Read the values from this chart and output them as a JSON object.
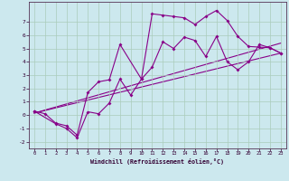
{
  "xlabel": "Windchill (Refroidissement éolien,°C)",
  "bg_color": "#cce8ee",
  "grid_color": "#aaccbb",
  "line_color": "#880088",
  "xlim": [
    -0.5,
    23.5
  ],
  "ylim": [
    -2.5,
    8.5
  ],
  "xticks": [
    0,
    1,
    2,
    3,
    4,
    5,
    6,
    7,
    8,
    9,
    10,
    11,
    12,
    13,
    14,
    15,
    16,
    17,
    18,
    19,
    20,
    21,
    22,
    23
  ],
  "yticks": [
    -2,
    -1,
    0,
    1,
    2,
    3,
    4,
    5,
    6,
    7
  ],
  "series1_x": [
    0,
    1,
    2,
    3,
    4,
    5,
    6,
    7,
    8,
    10,
    11,
    12,
    13,
    14,
    15,
    16,
    17,
    18,
    19,
    20,
    21,
    22,
    23
  ],
  "series1_y": [
    0.3,
    0.1,
    -0.6,
    -0.8,
    -1.5,
    1.7,
    2.5,
    2.65,
    5.3,
    2.7,
    7.6,
    7.5,
    7.4,
    7.3,
    6.8,
    7.4,
    7.85,
    7.1,
    5.9,
    5.15,
    5.1,
    5.05,
    4.65
  ],
  "series2_x": [
    0,
    2,
    3,
    4,
    5,
    6,
    7,
    8,
    9,
    10,
    11,
    12,
    13,
    14,
    15,
    16,
    17,
    18,
    19,
    20,
    21,
    22,
    23
  ],
  "series2_y": [
    0.3,
    -0.65,
    -1.0,
    -1.7,
    0.25,
    0.1,
    0.9,
    2.7,
    1.5,
    2.7,
    3.6,
    5.5,
    5.0,
    5.85,
    5.6,
    4.4,
    5.9,
    4.0,
    3.4,
    4.0,
    5.3,
    5.05,
    4.65
  ],
  "line1_x": [
    0,
    23
  ],
  "line1_y": [
    0.15,
    4.65
  ],
  "line2_x": [
    0,
    23
  ],
  "line2_y": [
    0.15,
    5.4
  ]
}
